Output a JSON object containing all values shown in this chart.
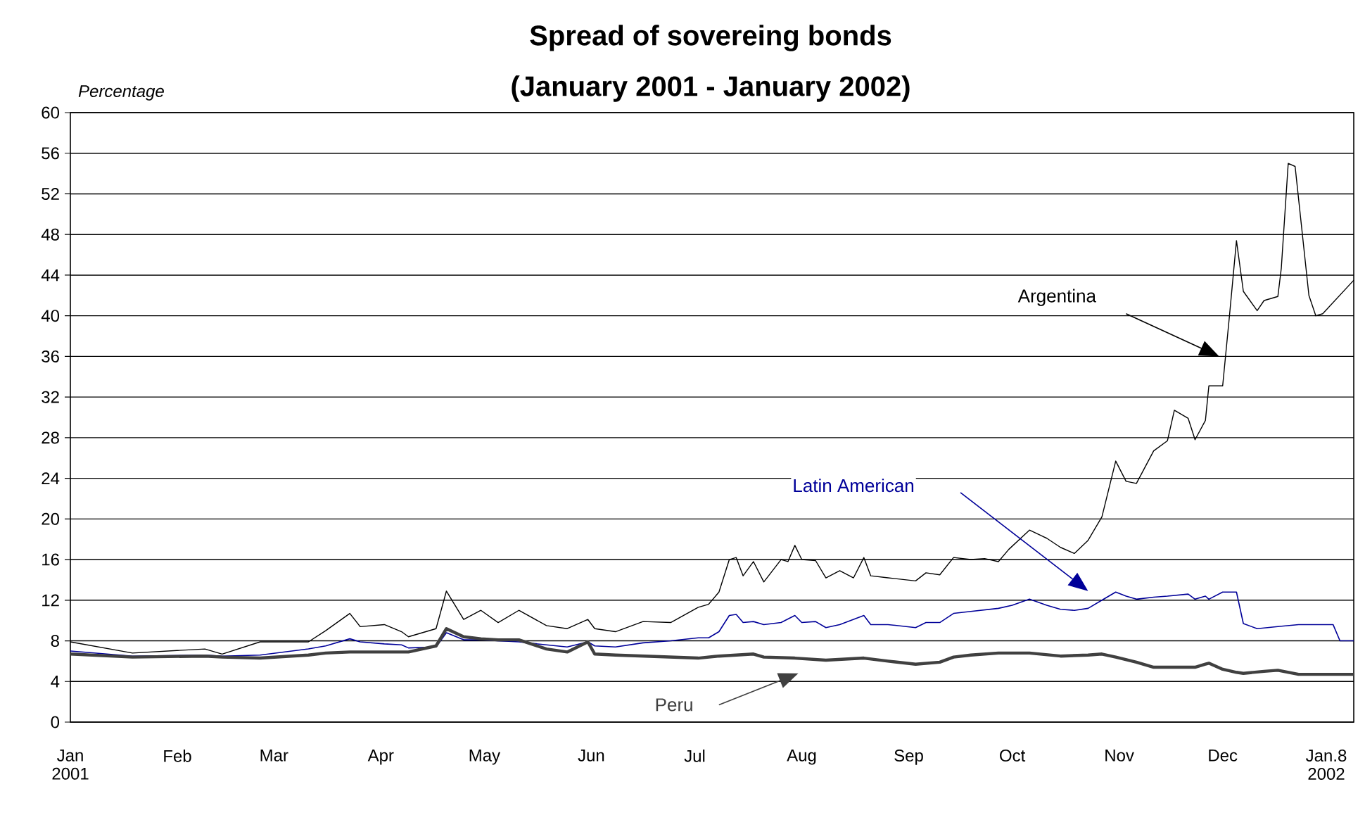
{
  "chart_data": {
    "type": "line",
    "title": "Spread of sovereing bonds",
    "subtitle": "(January 2001  - January 2002)",
    "ylabel": "Percentage",
    "xlim": [
      "2001-01-01",
      "2002-01-08"
    ],
    "xticks": [
      {
        "value": "2001-01-01",
        "label": "Jan 2001"
      },
      {
        "value": "2001-02-01",
        "label": "Feb"
      },
      {
        "value": "2001-03-01",
        "label": "Mar"
      },
      {
        "value": "2001-04-01",
        "label": "Apr"
      },
      {
        "value": "2001-05-01",
        "label": "May"
      },
      {
        "value": "2001-06-01",
        "label": "Jun"
      },
      {
        "value": "2001-07-01",
        "label": "Jul"
      },
      {
        "value": "2001-08-01",
        "label": "Aug"
      },
      {
        "value": "2001-09-01",
        "label": "Sep"
      },
      {
        "value": "2001-10-01",
        "label": "Oct"
      },
      {
        "value": "2001-11-01",
        "label": "Nov"
      },
      {
        "value": "2001-12-01",
        "label": "Dec"
      },
      {
        "value": "2002-01-08",
        "label": "Jan.8 2002"
      }
    ],
    "ylim": [
      0,
      60
    ],
    "yticks": [
      0,
      4,
      8,
      12,
      16,
      20,
      24,
      28,
      32,
      36,
      40,
      44,
      48,
      52,
      56,
      60
    ],
    "grid": "y",
    "series": [
      {
        "name": "Argentina",
        "color": "#000000",
        "x": [
          "2001-01-01",
          "2001-01-19",
          "2001-02-09",
          "2001-02-14",
          "2001-02-25",
          "2001-03-11",
          "2001-03-16",
          "2001-03-23",
          "2001-03-26",
          "2001-04-02",
          "2001-04-07",
          "2001-04-09",
          "2001-04-17",
          "2001-04-20",
          "2001-04-25",
          "2001-04-30",
          "2001-05-05",
          "2001-05-11",
          "2001-05-19",
          "2001-05-25",
          "2001-05-31",
          "2001-06-02",
          "2001-06-08",
          "2001-06-16",
          "2001-06-24",
          "2001-07-02",
          "2001-07-05",
          "2001-07-08",
          "2001-07-11",
          "2001-07-13",
          "2001-07-15",
          "2001-07-18",
          "2001-07-21",
          "2001-07-26",
          "2001-07-28",
          "2001-07-30",
          "2001-08-01",
          "2001-08-05",
          "2001-08-08",
          "2001-08-12",
          "2001-08-16",
          "2001-08-19",
          "2001-08-21",
          "2001-08-26",
          "2001-09-03",
          "2001-09-06",
          "2001-09-10",
          "2001-09-14",
          "2001-09-19",
          "2001-09-23",
          "2001-09-27",
          "2001-09-30",
          "2001-10-06",
          "2001-10-11",
          "2001-10-15",
          "2001-10-19",
          "2001-10-23",
          "2001-10-27",
          "2001-10-31",
          "2001-11-03",
          "2001-11-06",
          "2001-11-11",
          "2001-11-15",
          "2001-11-17",
          "2001-11-21",
          "2001-11-23",
          "2001-11-26",
          "2001-11-27",
          "2001-12-01",
          "2001-12-03",
          "2001-12-05",
          "2001-12-07",
          "2001-12-11",
          "2001-12-13",
          "2001-12-17",
          "2001-12-18",
          "2001-12-20",
          "2001-12-22",
          "2001-12-26",
          "2001-12-28",
          "2001-12-30",
          "2002-01-08"
        ],
        "values": [
          7.9,
          6.8,
          7.2,
          6.7,
          7.9,
          7.9,
          9.0,
          10.7,
          9.4,
          9.6,
          8.9,
          8.4,
          9.2,
          12.9,
          10.1,
          11.0,
          9.8,
          11.0,
          9.5,
          9.2,
          10.1,
          9.2,
          8.9,
          9.9,
          9.8,
          11.3,
          11.6,
          12.8,
          16.0,
          16.2,
          14.4,
          15.8,
          13.8,
          16.0,
          15.8,
          17.4,
          16.0,
          15.9,
          14.2,
          14.9,
          14.2,
          16.2,
          14.4,
          14.2,
          13.9,
          14.7,
          14.5,
          16.2,
          16.0,
          16.1,
          15.8,
          17.0,
          18.9,
          18.1,
          17.2,
          16.6,
          17.9,
          20.2,
          25.7,
          23.7,
          23.5,
          26.7,
          27.7,
          30.7,
          29.9,
          27.8,
          29.7,
          33.1,
          33.1,
          40.1,
          47.4,
          42.4,
          40.5,
          41.5,
          41.9,
          44.7,
          55.0,
          54.7,
          42.0,
          40.0,
          40.2,
          43.5
        ]
      },
      {
        "name": "Latin American",
        "color": "#000099",
        "x": [
          "2001-01-01",
          "2001-01-19",
          "2001-02-09",
          "2001-02-14",
          "2001-02-25",
          "2001-03-11",
          "2001-03-16",
          "2001-03-23",
          "2001-03-26",
          "2001-04-02",
          "2001-04-07",
          "2001-04-09",
          "2001-04-17",
          "2001-04-20",
          "2001-04-25",
          "2001-04-30",
          "2001-05-05",
          "2001-05-11",
          "2001-05-19",
          "2001-05-25",
          "2001-05-31",
          "2001-06-02",
          "2001-06-08",
          "2001-06-16",
          "2001-06-24",
          "2001-07-02",
          "2001-07-05",
          "2001-07-08",
          "2001-07-11",
          "2001-07-13",
          "2001-07-15",
          "2001-07-18",
          "2001-07-21",
          "2001-07-26",
          "2001-07-30",
          "2001-08-01",
          "2001-08-05",
          "2001-08-08",
          "2001-08-12",
          "2001-08-19",
          "2001-08-21",
          "2001-08-26",
          "2001-09-03",
          "2001-09-06",
          "2001-09-10",
          "2001-09-14",
          "2001-09-19",
          "2001-09-27",
          "2001-10-01",
          "2001-10-06",
          "2001-10-11",
          "2001-10-15",
          "2001-10-19",
          "2001-10-23",
          "2001-10-27",
          "2001-10-31",
          "2001-11-03",
          "2001-11-06",
          "2001-11-11",
          "2001-11-15",
          "2001-11-21",
          "2001-11-23",
          "2001-11-26",
          "2001-11-27",
          "2001-12-01",
          "2001-12-05",
          "2001-12-07",
          "2001-12-11",
          "2001-12-17",
          "2001-12-23",
          "2002-01-02",
          "2002-01-04",
          "2002-01-08"
        ],
        "values": [
          7.0,
          6.5,
          6.6,
          6.5,
          6.6,
          7.2,
          7.5,
          8.2,
          7.9,
          7.7,
          7.6,
          7.3,
          7.4,
          8.8,
          8.1,
          8.1,
          8.0,
          7.9,
          7.6,
          7.4,
          7.9,
          7.5,
          7.4,
          7.8,
          8.0,
          8.3,
          8.3,
          8.9,
          10.5,
          10.6,
          9.8,
          9.9,
          9.6,
          9.8,
          10.5,
          9.8,
          9.9,
          9.3,
          9.6,
          10.5,
          9.6,
          9.6,
          9.3,
          9.8,
          9.8,
          10.7,
          10.9,
          11.2,
          11.5,
          12.1,
          11.5,
          11.1,
          11.0,
          11.2,
          12.0,
          12.8,
          12.4,
          12.1,
          12.3,
          12.4,
          12.6,
          12.1,
          12.4,
          12.1,
          12.8,
          12.8,
          9.7,
          9.2,
          9.4,
          9.6,
          9.6,
          8.0,
          8.0
        ]
      },
      {
        "name": "Peru",
        "color": "#404040",
        "x": [
          "2001-01-01",
          "2001-01-19",
          "2001-02-09",
          "2001-02-14",
          "2001-02-25",
          "2001-03-11",
          "2001-03-16",
          "2001-03-23",
          "2001-04-07",
          "2001-04-09",
          "2001-04-17",
          "2001-04-20",
          "2001-04-25",
          "2001-04-30",
          "2001-05-05",
          "2001-05-11",
          "2001-05-19",
          "2001-05-25",
          "2001-05-31",
          "2001-06-02",
          "2001-06-08",
          "2001-06-16",
          "2001-06-24",
          "2001-07-02",
          "2001-07-08",
          "2001-07-13",
          "2001-07-18",
          "2001-07-21",
          "2001-07-30",
          "2001-08-08",
          "2001-08-19",
          "2001-08-26",
          "2001-09-03",
          "2001-09-10",
          "2001-09-14",
          "2001-09-19",
          "2001-09-27",
          "2001-10-06",
          "2001-10-15",
          "2001-10-23",
          "2001-10-27",
          "2001-10-31",
          "2001-11-06",
          "2001-11-11",
          "2001-11-23",
          "2001-11-26",
          "2001-11-27",
          "2001-12-01",
          "2001-12-05",
          "2001-12-07",
          "2001-12-13",
          "2001-12-17",
          "2001-12-23",
          "2002-01-08"
        ],
        "values": [
          6.7,
          6.4,
          6.5,
          6.4,
          6.3,
          6.6,
          6.8,
          6.9,
          6.9,
          6.9,
          7.5,
          9.2,
          8.4,
          8.2,
          8.1,
          8.1,
          7.2,
          6.9,
          7.9,
          6.7,
          6.6,
          6.5,
          6.4,
          6.3,
          6.5,
          6.6,
          6.7,
          6.4,
          6.3,
          6.1,
          6.3,
          6.0,
          5.7,
          5.9,
          6.4,
          6.6,
          6.8,
          6.8,
          6.5,
          6.6,
          6.7,
          6.4,
          5.9,
          5.4,
          5.4,
          5.7,
          5.8,
          5.2,
          4.9,
          4.8,
          5.0,
          5.1,
          4.7,
          4.7
        ]
      }
    ]
  }
}
